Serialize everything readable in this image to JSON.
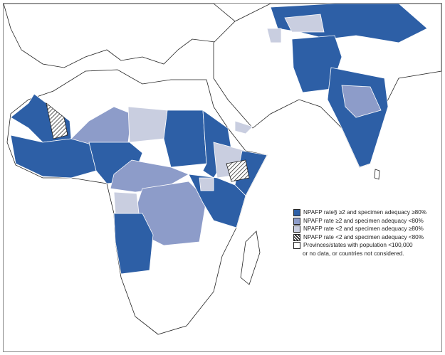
{
  "legend": {
    "items": [
      {
        "label": "NPAFP rate§ ≥2 and specimen adequacy ≥80%",
        "color": "#2d5fa6",
        "pattern": "solid"
      },
      {
        "label": "NPAFP rate ≥2 and specimen adequacy <80%",
        "color": "#8d9cc9",
        "pattern": "solid"
      },
      {
        "label": "NPAFP rate <2 and specimen adequacy ≥80%",
        "color": "#c9cee0",
        "pattern": "solid"
      },
      {
        "label": "NPAFP rate <2 and specimen adequacy <80%",
        "color": "#ffffff",
        "pattern": "hatched"
      },
      {
        "label": "Provinces/states with population <100,000",
        "label2": "or no data, or countries not considered.",
        "color": "#ffffff",
        "pattern": "solid"
      }
    ]
  },
  "colors": {
    "high": "#2d5fa6",
    "mid": "#8d9cc9",
    "low": "#c9cee0",
    "none": "#ffffff",
    "border": "#222222"
  }
}
